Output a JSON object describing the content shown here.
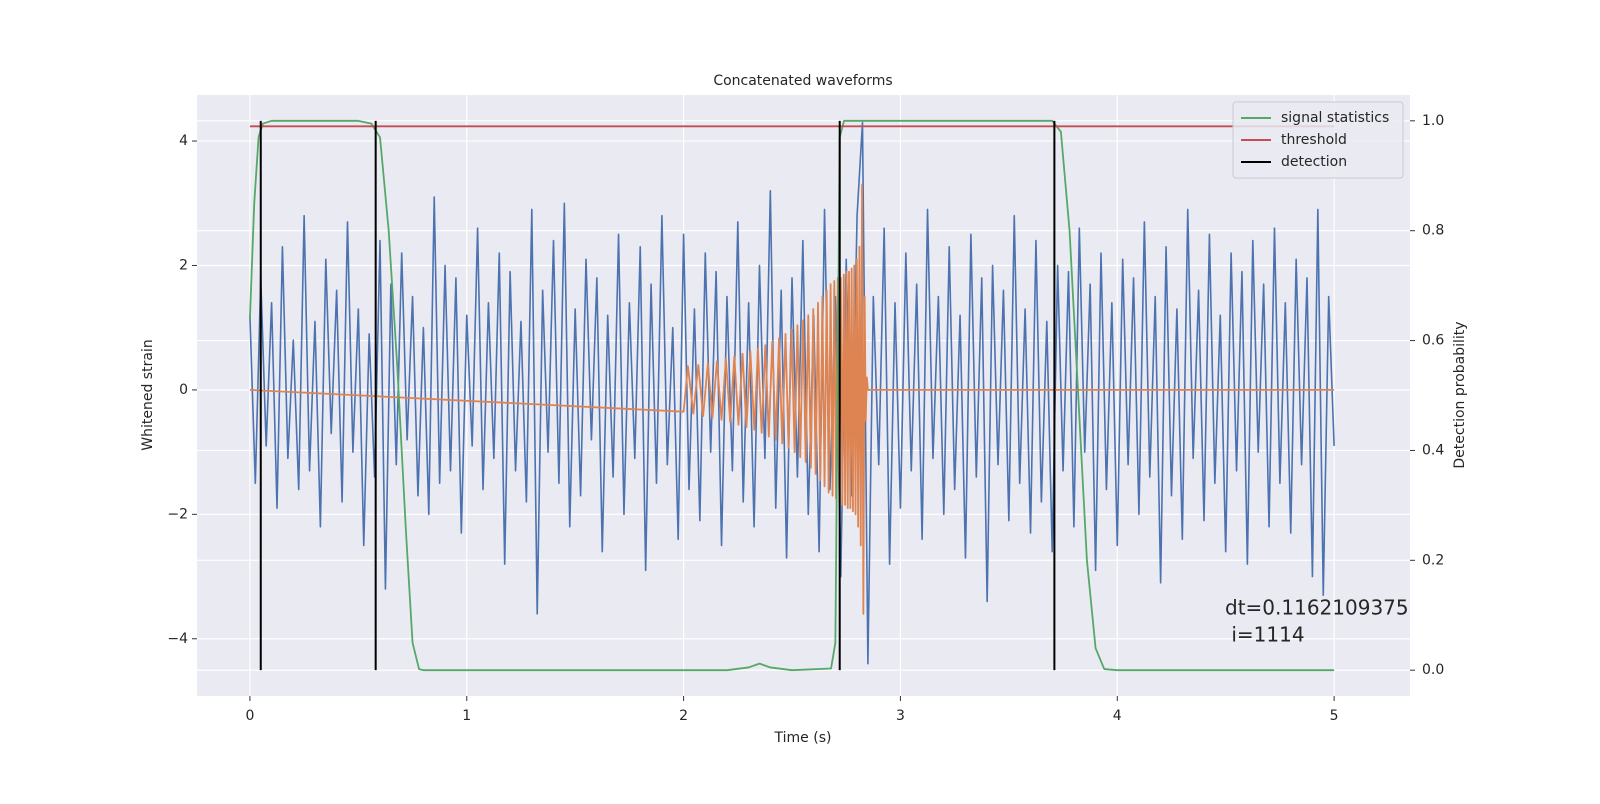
{
  "chart_data": {
    "type": "line",
    "title": "Concatenated waveforms",
    "xlabel": "Time (s)",
    "ylabel": "Whitened strain",
    "y2label": "Detection probability",
    "annotation": [
      "dt=0.1162109375",
      " i=1114"
    ],
    "xlim": [
      -0.244,
      5.35
    ],
    "ylim": [
      -4.92,
      4.74
    ],
    "y2lim": [
      -0.047,
      1.047
    ],
    "xticks": [
      0,
      1,
      2,
      3,
      4,
      5
    ],
    "yticks": [
      {
        "value": -4,
        "label": "−4"
      },
      {
        "value": -2,
        "label": "−2"
      },
      0,
      2,
      4
    ],
    "y2ticks": [
      {
        "value": 0,
        "label": "0.0"
      },
      0.2,
      0.4,
      0.6,
      0.8,
      {
        "value": 1,
        "label": "1.0"
      }
    ],
    "grid": true,
    "legend": "upper right",
    "x": [
      0,
      0.025,
      0.05,
      0.075,
      0.1,
      0.125,
      0.15,
      0.175,
      0.2,
      0.225,
      0.25,
      0.275,
      0.3,
      0.325,
      0.35,
      0.375,
      0.4,
      0.425,
      0.45,
      0.475,
      0.5,
      0.525,
      0.55,
      0.575,
      0.6,
      0.625,
      0.65,
      0.675,
      0.7,
      0.725,
      0.75,
      0.775,
      0.8,
      0.825,
      0.85,
      0.875,
      0.9,
      0.925,
      0.95,
      0.975,
      1,
      1.025,
      1.05,
      1.075,
      1.1,
      1.125,
      1.15,
      1.175,
      1.2,
      1.225,
      1.25,
      1.275,
      1.3,
      1.325,
      1.35,
      1.375,
      1.4,
      1.425,
      1.45,
      1.475,
      1.5,
      1.525,
      1.55,
      1.575,
      1.6,
      1.625,
      1.65,
      1.675,
      1.7,
      1.725,
      1.75,
      1.775,
      1.8,
      1.825,
      1.85,
      1.875,
      1.9,
      1.925,
      1.95,
      1.975,
      2,
      2.025,
      2.05,
      2.075,
      2.1,
      2.125,
      2.15,
      2.175,
      2.2,
      2.225,
      2.25,
      2.275,
      2.3,
      2.325,
      2.35,
      2.375,
      2.4,
      2.425,
      2.45,
      2.475,
      2.5,
      2.525,
      2.55,
      2.575,
      2.6,
      2.625,
      2.65,
      2.675,
      2.7,
      2.725,
      2.75,
      2.775,
      2.8,
      2.825,
      2.85,
      2.875,
      2.9,
      2.925,
      2.95,
      2.975,
      3,
      3.025,
      3.05,
      3.075,
      3.1,
      3.125,
      3.15,
      3.175,
      3.2,
      3.225,
      3.25,
      3.275,
      3.3,
      3.325,
      3.35,
      3.375,
      3.4,
      3.425,
      3.45,
      3.475,
      3.5,
      3.525,
      3.55,
      3.575,
      3.6,
      3.625,
      3.65,
      3.675,
      3.7,
      3.725,
      3.75,
      3.775,
      3.8,
      3.825,
      3.85,
      3.875,
      3.9,
      3.925,
      3.95,
      3.975,
      4,
      4.025,
      4.05,
      4.075,
      4.1,
      4.125,
      4.15,
      4.175,
      4.2,
      4.225,
      4.25,
      4.275,
      4.3,
      4.325,
      4.35,
      4.375,
      4.4,
      4.425,
      4.45,
      4.475,
      4.5,
      4.525,
      4.55,
      4.575,
      4.6,
      4.625,
      4.65,
      4.675,
      4.7,
      4.725,
      4.75,
      4.775,
      4.8,
      4.825,
      4.85,
      4.875,
      4.9,
      4.925,
      4.95,
      4.975,
      5
    ],
    "series": [
      {
        "color": "#4c72b0",
        "values": [
          1.2,
          -1.5,
          1.8,
          -0.9,
          1.4,
          -1.9,
          2.3,
          -1.1,
          0.8,
          -1.6,
          2.8,
          -1.3,
          1.1,
          -2.2,
          2.1,
          -0.7,
          1.6,
          -1.8,
          2.7,
          -1.0,
          1.3,
          -2.5,
          0.9,
          -1.4,
          2.4,
          -3.2,
          1.7,
          -1.2,
          2.2,
          -0.8,
          1.5,
          -1.7,
          1.0,
          -2.0,
          3.1,
          -1.5,
          2.0,
          -1.3,
          1.8,
          -2.3,
          1.2,
          -0.9,
          2.6,
          -1.6,
          1.4,
          -1.1,
          2.2,
          -2.8,
          1.9,
          -1.3,
          1.1,
          -1.8,
          2.9,
          -3.6,
          1.6,
          -1.0,
          2.4,
          -1.5,
          3.0,
          -2.2,
          1.3,
          -1.7,
          2.1,
          -0.8,
          1.8,
          -2.6,
          1.2,
          -1.4,
          2.5,
          -2.0,
          1.4,
          -1.1,
          2.3,
          -2.9,
          1.7,
          -1.5,
          2.8,
          -1.2,
          1.0,
          -2.4,
          2.5,
          -1.6,
          1.3,
          -2.1,
          2.2,
          -1.0,
          1.9,
          -2.5,
          1.5,
          -1.3,
          2.7,
          -1.8,
          1.4,
          -2.2,
          2.0,
          -1.1,
          3.2,
          -1.9,
          1.6,
          -2.7,
          1.8,
          -1.4,
          2.4,
          -2.0,
          1.2,
          -2.6,
          2.9,
          -1.6,
          1.5,
          -3.0,
          2.1,
          -1.7,
          2.8,
          4.3,
          -4.4,
          1.5,
          -1.2,
          2.6,
          -2.8,
          1.4,
          -1.9,
          2.2,
          -1.3,
          1.7,
          -2.4,
          2.9,
          -1.1,
          1.5,
          -2.0,
          2.3,
          -1.6,
          1.2,
          -2.7,
          2.5,
          -1.4,
          1.8,
          -3.4,
          2.0,
          -1.2,
          1.6,
          -2.1,
          2.8,
          -1.5,
          1.3,
          -2.3,
          2.4,
          -1.8,
          1.1,
          -2.6,
          2.0,
          -1.3,
          1.9,
          -2.2,
          2.6,
          -1.0,
          1.7,
          -2.9,
          2.2,
          -1.6,
          1.4,
          -2.5,
          2.1,
          -1.2,
          1.8,
          -2.0,
          2.7,
          -1.4,
          1.5,
          -3.1,
          2.3,
          -1.7,
          1.3,
          -2.4,
          2.9,
          -1.1,
          1.6,
          -2.1,
          2.5,
          -1.5,
          1.2,
          -2.6,
          2.2,
          -1.3,
          1.9,
          -2.8,
          2.4,
          -1.0,
          1.7,
          -2.2,
          2.6,
          -1.5,
          1.4,
          -2.3,
          2.1,
          -1.2,
          1.8,
          -3.0,
          2.9,
          -3.3,
          1.5,
          -0.9
        ]
      },
      {
        "color": "#dd8452",
        "x": [
          0,
          2.0,
          2.02,
          2.045,
          2.068,
          2.09,
          2.112,
          2.133,
          2.154,
          2.175,
          2.195,
          2.215,
          2.234,
          2.253,
          2.272,
          2.29,
          2.308,
          2.326,
          2.343,
          2.36,
          2.377,
          2.393,
          2.409,
          2.425,
          2.44,
          2.455,
          2.47,
          2.484,
          2.498,
          2.512,
          2.525,
          2.538,
          2.551,
          2.563,
          2.575,
          2.587,
          2.598,
          2.609,
          2.62,
          2.63,
          2.64,
          2.65,
          2.66,
          2.669,
          2.678,
          2.687,
          2.695,
          2.703,
          2.711,
          2.718,
          2.725,
          2.732,
          2.739,
          2.745,
          2.751,
          2.757,
          2.763,
          2.769,
          2.775,
          2.781,
          2.787,
          2.793,
          2.799,
          2.805,
          2.811,
          2.817,
          2.823,
          2.829,
          2.835,
          2.84,
          2.845,
          2.85,
          5
        ],
        "values": [
          0,
          -0.35,
          0.38,
          -0.38,
          0.4,
          -0.42,
          0.43,
          -0.45,
          0.46,
          -0.48,
          0.5,
          -0.52,
          0.54,
          -0.56,
          0.58,
          -0.6,
          0.62,
          -0.64,
          0.66,
          -0.69,
          0.72,
          -0.75,
          0.78,
          -0.8,
          0.83,
          -0.86,
          0.9,
          -0.93,
          0.97,
          -1.0,
          1.04,
          -1.08,
          1.12,
          -1.16,
          1.2,
          -1.25,
          1.3,
          -1.35,
          1.4,
          -1.45,
          1.5,
          -1.55,
          1.6,
          -1.65,
          1.7,
          -1.7,
          1.75,
          -1.75,
          1.8,
          -1.8,
          1.8,
          -1.85,
          1.85,
          -1.85,
          1.9,
          -1.9,
          1.9,
          -1.9,
          1.95,
          -1.95,
          2.0,
          -2.0,
          2.1,
          -2.2,
          2.3,
          -2.5,
          3.3,
          -3.6,
          1.5,
          -0.5,
          0.2,
          0,
          0
        ]
      },
      {
        "name": "signal statistics",
        "color": "#55a868",
        "axis": "y2",
        "x": [
          0,
          0.02,
          0.04,
          0.06,
          0.1,
          0.5,
          0.56,
          0.6,
          0.64,
          0.68,
          0.72,
          0.75,
          0.78,
          0.8,
          2.2,
          2.3,
          2.35,
          2.4,
          2.5,
          2.68,
          2.7,
          2.71,
          2.72,
          2.74,
          3.7,
          3.74,
          3.78,
          3.82,
          3.86,
          3.9,
          3.94,
          4.0,
          5.0
        ],
        "values": [
          0.64,
          0.85,
          0.97,
          0.995,
          1.0,
          1.0,
          0.995,
          0.97,
          0.8,
          0.55,
          0.25,
          0.05,
          0.002,
          0.0,
          0.0,
          0.005,
          0.012,
          0.005,
          0.0,
          0.003,
          0.05,
          0.5,
          0.97,
          1.0,
          1.0,
          0.98,
          0.8,
          0.5,
          0.2,
          0.04,
          0.002,
          0.0,
          0.0
        ]
      },
      {
        "name": "threshold",
        "color": "#c44e52",
        "axis": "y2",
        "x": [
          0,
          5
        ],
        "values": [
          0.99,
          0.99
        ]
      },
      {
        "name": "detection",
        "color": "#000000",
        "axis": "y2",
        "style": "vlines",
        "x": [
          0.05,
          0.58,
          2.72,
          3.71
        ],
        "values": [
          1,
          1,
          1,
          1
        ]
      }
    ]
  }
}
